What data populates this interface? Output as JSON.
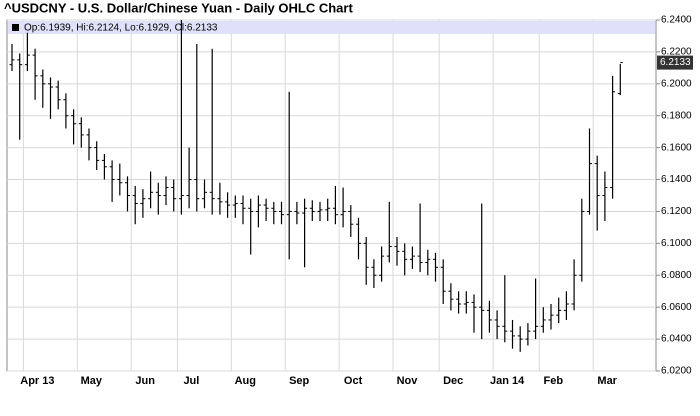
{
  "chart_data": {
    "type": "ohlc",
    "title": "^USDCNY - U.S. Dollar/Chinese Yuan - Daily OHLC Chart",
    "ohlc_label": "Op:6.1939, Hi:6.2124, Lo:6.1929, Cl:6.2133",
    "last_value_label": "6.2133",
    "color": "#000000",
    "grid": true,
    "categories": [
      null,
      null,
      "Apr 13",
      null,
      null,
      null,
      null,
      null,
      null,
      "May",
      null,
      null,
      null,
      null,
      null,
      null,
      "Jun",
      null,
      null,
      null,
      null,
      null,
      "Jul",
      null,
      null,
      null,
      null,
      null,
      null,
      "Aug",
      null,
      null,
      null,
      null,
      null,
      null,
      "Sep",
      null,
      null,
      null,
      null,
      null,
      null,
      "Oct",
      null,
      null,
      null,
      null,
      null,
      null,
      "Nov",
      null,
      null,
      null,
      null,
      null,
      "Dec",
      null,
      null,
      null,
      null,
      null,
      null,
      "Jan 14",
      null,
      null,
      null,
      null,
      null,
      "Feb",
      null,
      null,
      null,
      null,
      null,
      null,
      "Mar",
      null,
      null,
      null
    ],
    "open": [
      6.212,
      6.215,
      6.212,
      6.218,
      6.205,
      6.2,
      6.198,
      6.19,
      6.18,
      6.175,
      6.168,
      6.16,
      6.152,
      6.148,
      6.14,
      6.138,
      6.13,
      6.125,
      6.128,
      6.132,
      6.13,
      6.135,
      6.128,
      6.13,
      6.14,
      6.128,
      6.132,
      6.128,
      6.126,
      6.124,
      6.125,
      6.122,
      6.12,
      6.124,
      6.122,
      6.12,
      6.118,
      6.12,
      6.119,
      6.122,
      6.12,
      6.121,
      6.122,
      6.118,
      6.12,
      6.112,
      6.1,
      6.085,
      6.08,
      6.092,
      6.098,
      6.095,
      6.09,
      6.092,
      6.088,
      6.09,
      6.085,
      6.07,
      6.065,
      6.062,
      6.063,
      6.06,
      6.058,
      6.052,
      6.048,
      6.045,
      6.042,
      6.04,
      6.045,
      6.048,
      6.052,
      6.055,
      6.058,
      6.062,
      6.08,
      6.12,
      6.15,
      6.13,
      6.135,
      6.1939
    ],
    "high": [
      6.225,
      6.219,
      6.232,
      6.222,
      6.209,
      6.204,
      6.202,
      6.194,
      6.184,
      6.179,
      6.172,
      6.164,
      6.156,
      6.152,
      6.15,
      6.142,
      6.136,
      6.134,
      6.145,
      6.138,
      6.142,
      6.14,
      6.24,
      6.16,
      6.225,
      6.14,
      6.222,
      6.138,
      6.132,
      6.13,
      6.13,
      6.128,
      6.13,
      6.128,
      6.126,
      6.126,
      6.195,
      6.126,
      6.128,
      6.127,
      6.126,
      6.128,
      6.136,
      6.135,
      6.124,
      6.116,
      6.104,
      6.09,
      6.098,
      6.126,
      6.104,
      6.1,
      6.098,
      6.125,
      6.096,
      6.094,
      6.09,
      6.075,
      6.07,
      6.07,
      6.068,
      6.125,
      6.064,
      6.058,
      6.08,
      6.052,
      6.048,
      6.05,
      6.078,
      6.06,
      6.062,
      6.066,
      6.07,
      6.09,
      6.128,
      6.172,
      6.155,
      6.145,
      6.205,
      6.2124
    ],
    "low": [
      6.208,
      6.165,
      6.208,
      6.19,
      6.185,
      6.178,
      6.184,
      6.172,
      6.162,
      6.16,
      6.152,
      6.146,
      6.14,
      6.126,
      6.13,
      6.12,
      6.112,
      6.116,
      6.122,
      6.118,
      6.124,
      6.12,
      6.118,
      6.122,
      6.12,
      6.122,
      6.118,
      6.118,
      6.116,
      6.116,
      6.112,
      6.093,
      6.11,
      6.114,
      6.112,
      6.112,
      6.09,
      6.112,
      6.085,
      6.114,
      6.114,
      6.114,
      6.112,
      6.11,
      6.104,
      6.09,
      6.074,
      6.072,
      6.076,
      6.088,
      6.086,
      6.08,
      6.084,
      6.082,
      6.08,
      6.076,
      6.062,
      6.058,
      6.056,
      6.056,
      6.044,
      6.04,
      6.044,
      6.04,
      6.038,
      6.034,
      6.032,
      6.036,
      6.04,
      6.044,
      6.046,
      6.05,
      6.052,
      6.058,
      6.076,
      6.118,
      6.108,
      6.114,
      6.128,
      6.1929
    ],
    "close": [
      6.215,
      6.212,
      6.218,
      6.205,
      6.2,
      6.198,
      6.19,
      6.18,
      6.175,
      6.168,
      6.16,
      6.152,
      6.148,
      6.14,
      6.138,
      6.13,
      6.125,
      6.128,
      6.132,
      6.13,
      6.135,
      6.128,
      6.13,
      6.14,
      6.128,
      6.132,
      6.128,
      6.126,
      6.124,
      6.125,
      6.122,
      6.12,
      6.124,
      6.122,
      6.12,
      6.118,
      6.12,
      6.119,
      6.122,
      6.12,
      6.121,
      6.122,
      6.118,
      6.12,
      6.112,
      6.1,
      6.085,
      6.08,
      6.092,
      6.098,
      6.095,
      6.09,
      6.092,
      6.088,
      6.09,
      6.085,
      6.07,
      6.065,
      6.062,
      6.063,
      6.06,
      6.058,
      6.052,
      6.048,
      6.045,
      6.042,
      6.04,
      6.045,
      6.048,
      6.052,
      6.055,
      6.058,
      6.062,
      6.08,
      6.12,
      6.15,
      6.13,
      6.135,
      6.195,
      6.2133
    ],
    "ylim": [
      6.02,
      6.24
    ],
    "yticks": [
      {
        "value": 6.02,
        "label": "6.0200"
      },
      {
        "value": 6.04,
        "label": "6.0400"
      },
      {
        "value": 6.06,
        "label": "6.0600"
      },
      {
        "value": 6.08,
        "label": "6.0800"
      },
      {
        "value": 6.1,
        "label": "6.1000"
      },
      {
        "value": 6.12,
        "label": "6.1200"
      },
      {
        "value": 6.14,
        "label": "6.1400"
      },
      {
        "value": 6.16,
        "label": "6.1600"
      },
      {
        "value": 6.18,
        "label": "6.1800"
      },
      {
        "value": 6.2,
        "label": "6.2000"
      },
      {
        "value": 6.22,
        "label": "6.2200"
      },
      {
        "value": 6.24,
        "label": "6.2400"
      }
    ]
  }
}
